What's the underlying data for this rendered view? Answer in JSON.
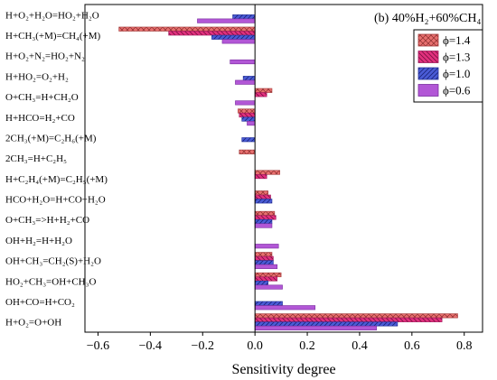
{
  "chart_data": {
    "type": "bar",
    "orientation": "horizontal",
    "title": "(b) 40%H₂+60%CH₄",
    "xlabel": "Sensitivity degree",
    "ylabel": "",
    "xlim": [
      -0.65,
      0.87
    ],
    "xticks": [
      "−0.6",
      "−0.4",
      "−0.2",
      "0.0",
      "0.2",
      "0.4",
      "0.6",
      "0.8"
    ],
    "xtick_values": [
      -0.6,
      -0.4,
      -0.2,
      0.0,
      0.2,
      0.4,
      0.6,
      0.8
    ],
    "grid": false,
    "legend_position": "top-right",
    "categories": [
      "H+O₂+H₂O=HO₂+H₂O",
      "H+CH₃(+M)=CH₄(+M)",
      "H+O₂+N₂=HO₂+N₂",
      "H+HO₂=O₂+H₂",
      "O+CH₃=H+CH₂O",
      "H+HCO=H₂+CO",
      "2CH₃(+M)=C₂H₆(+M)",
      "2CH₃=H+C₂H₅",
      "H+C₂H₄(+M)=C₂H₅(+M)",
      "HCO+H₂O=H+CO+H₂O",
      "O+CH₃=>H+H₂+CO",
      "OH+H₂=H+H₂O",
      "OH+CH₃=CH₂(S)+H₂O",
      "HO₂+CH₃=OH+CH₃O",
      "OH+CO=H+CO₂",
      "H+O₂=O+OH"
    ],
    "series": [
      {
        "name": "ϕ=1.4",
        "color": "#e8706f",
        "pattern": "crosshatch",
        "values": [
          0,
          -0.52,
          0,
          0,
          0.065,
          -0.065,
          0,
          -0.06,
          0.095,
          0.05,
          0.075,
          0,
          0.065,
          0.1,
          0,
          0.775
        ]
      },
      {
        "name": "ϕ=1.3",
        "color": "#e2307e",
        "pattern": "hatch",
        "values": [
          0,
          -0.33,
          0,
          0,
          0.045,
          -0.06,
          0,
          0,
          0.045,
          0.06,
          0.08,
          0,
          0.07,
          0.085,
          0,
          0.715
        ]
      },
      {
        "name": "ϕ=1.0",
        "color": "#4a5cd6",
        "pattern": "hatch",
        "values": [
          -0.085,
          -0.165,
          0,
          -0.045,
          0,
          -0.05,
          -0.05,
          0,
          0,
          0.065,
          0.065,
          0,
          0.07,
          0.05,
          0.105,
          0.545
        ]
      },
      {
        "name": "ϕ=0.6",
        "color": "#b257d6",
        "pattern": "solid",
        "values": [
          -0.22,
          -0.125,
          -0.095,
          -0.075,
          -0.075,
          -0.03,
          0,
          0,
          0,
          0,
          0.065,
          0.09,
          0.085,
          0.105,
          0.23,
          0.465
        ]
      }
    ]
  }
}
